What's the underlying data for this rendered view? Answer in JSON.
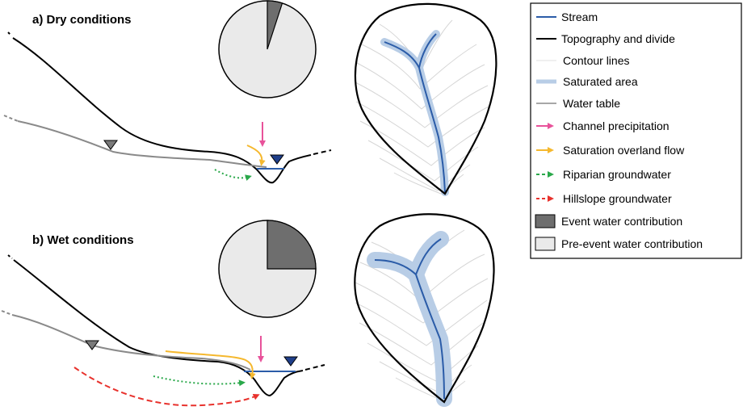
{
  "panels": {
    "dry": {
      "label": "a) Dry conditions",
      "event_water_fraction": 0.05
    },
    "wet": {
      "label": "b) Wet conditions",
      "event_water_fraction": 0.25
    }
  },
  "legend": {
    "items": [
      {
        "key": "stream",
        "label": "Stream",
        "color": "#2b5ca8",
        "symbol": "line"
      },
      {
        "key": "topography",
        "label": "Topography and divide",
        "color": "#000000",
        "symbol": "line"
      },
      {
        "key": "contour",
        "label": "Contour lines",
        "color": "#d9d9d9",
        "symbol": "line"
      },
      {
        "key": "saturated",
        "label": "Saturated area",
        "color": "#b8cde6",
        "symbol": "thick-line"
      },
      {
        "key": "watertable",
        "label": "Water table",
        "color": "#8a8a8a",
        "symbol": "line"
      },
      {
        "key": "channel_precip",
        "label": "Channel precipitation",
        "color": "#e8529a",
        "symbol": "arrow"
      },
      {
        "key": "overland",
        "label": "Saturation overland flow",
        "color": "#f5b82e",
        "symbol": "arrow"
      },
      {
        "key": "riparian",
        "label": "Riparian groundwater",
        "color": "#2aa84a",
        "symbol": "dotted-arrow"
      },
      {
        "key": "hillslope",
        "label": "Hillslope groundwater",
        "color": "#e8322d",
        "symbol": "dashed-arrow"
      },
      {
        "key": "event",
        "label": "Event water contribution",
        "color": "#6e6e6e",
        "symbol": "box"
      },
      {
        "key": "preevent",
        "label": "Pre-event water contribution",
        "color": "#eaeaea",
        "symbol": "box"
      }
    ]
  }
}
